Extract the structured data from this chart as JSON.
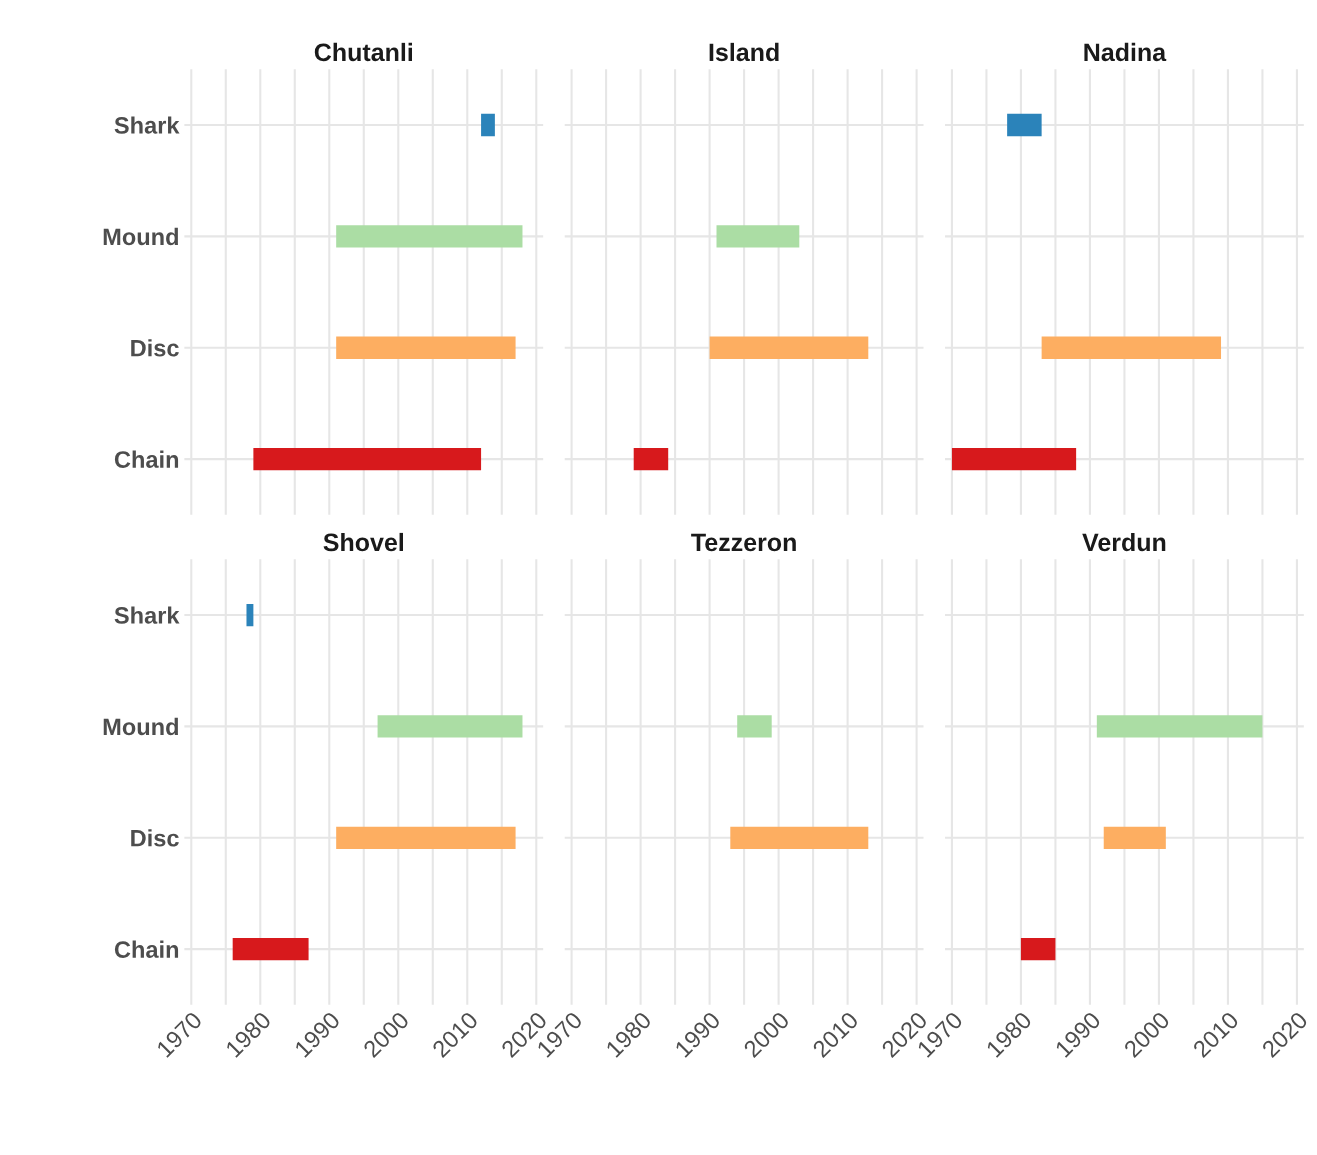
{
  "chart_data": [
    {
      "type": "bar",
      "orientation": "horizontal",
      "title": "Chutanli",
      "categories": [
        "Shark",
        "Mound",
        "Disc",
        "Chain"
      ],
      "base": [
        2012,
        1991,
        1991,
        1979
      ],
      "values": [
        2,
        27,
        26,
        33
      ],
      "colors": [
        "#2b83ba",
        "#abdda4",
        "#fdae61",
        "#d7191c"
      ],
      "xlim": [
        1969,
        2021
      ],
      "xticks": [
        1970,
        {
          "value": 1975,
          "label": null
        },
        1980,
        {
          "value": 1985,
          "label": null
        },
        1990,
        {
          "value": 1995,
          "label": null
        },
        2000,
        {
          "value": 2005,
          "label": null
        },
        2010,
        {
          "value": 2015,
          "label": null
        },
        2020
      ],
      "grid": true,
      "tick_labels": "y"
    },
    {
      "type": "bar",
      "orientation": "horizontal",
      "title": "Island",
      "categories": [
        "Shark",
        "Mound",
        "Disc",
        "Chain"
      ],
      "base": [
        null,
        1991,
        1990,
        1979
      ],
      "values": [
        null,
        12,
        23,
        5
      ],
      "colors": [
        "#2b83ba",
        "#abdda4",
        "#fdae61",
        "#d7191c"
      ],
      "xlim": [
        1969,
        2021
      ],
      "xticks": [
        1970,
        {
          "value": 1975,
          "label": null
        },
        1980,
        {
          "value": 1985,
          "label": null
        },
        1990,
        {
          "value": 1995,
          "label": null
        },
        2000,
        {
          "value": 2005,
          "label": null
        },
        2010,
        {
          "value": 2015,
          "label": null
        },
        2020
      ],
      "grid": true,
      "tick_labels": false
    },
    {
      "type": "bar",
      "orientation": "horizontal",
      "title": "Nadina",
      "categories": [
        "Shark",
        "Mound",
        "Disc",
        "Chain"
      ],
      "base": [
        1978,
        null,
        1983,
        1970
      ],
      "values": [
        5,
        null,
        26,
        18
      ],
      "colors": [
        "#2b83ba",
        "#abdda4",
        "#fdae61",
        "#d7191c"
      ],
      "xlim": [
        1969,
        2021
      ],
      "xticks": [
        1970,
        {
          "value": 1975,
          "label": null
        },
        1980,
        {
          "value": 1985,
          "label": null
        },
        1990,
        {
          "value": 1995,
          "label": null
        },
        2000,
        {
          "value": 2005,
          "label": null
        },
        2010,
        {
          "value": 2015,
          "label": null
        },
        2020
      ],
      "grid": true,
      "tick_labels": false
    },
    {
      "type": "bar",
      "orientation": "horizontal",
      "title": "Shovel",
      "categories": [
        "Shark",
        "Mound",
        "Disc",
        "Chain"
      ],
      "base": [
        1978,
        1997,
        1991,
        1976
      ],
      "values": [
        1,
        21,
        26,
        11
      ],
      "colors": [
        "#2b83ba",
        "#abdda4",
        "#fdae61",
        "#d7191c"
      ],
      "xlim": [
        1969,
        2021
      ],
      "xticks": [
        1970,
        {
          "value": 1975,
          "label": null
        },
        1980,
        {
          "value": 1985,
          "label": null
        },
        1990,
        {
          "value": 1995,
          "label": null
        },
        2000,
        {
          "value": 2005,
          "label": null
        },
        2010,
        {
          "value": 2015,
          "label": null
        },
        2020
      ],
      "grid": true
    },
    {
      "type": "bar",
      "orientation": "horizontal",
      "title": "Tezzeron",
      "categories": [
        "Shark",
        "Mound",
        "Disc",
        "Chain"
      ],
      "base": [
        null,
        1994,
        1993,
        null
      ],
      "values": [
        null,
        5,
        20,
        null
      ],
      "colors": [
        "#2b83ba",
        "#abdda4",
        "#fdae61",
        "#d7191c"
      ],
      "xlim": [
        1969,
        2021
      ],
      "xticks": [
        1970,
        {
          "value": 1975,
          "label": null
        },
        1980,
        {
          "value": 1985,
          "label": null
        },
        1990,
        {
          "value": 1995,
          "label": null
        },
        2000,
        {
          "value": 2005,
          "label": null
        },
        2010,
        {
          "value": 2015,
          "label": null
        },
        2020
      ],
      "grid": true,
      "tick_labels": "x"
    },
    {
      "type": "bar",
      "orientation": "horizontal",
      "title": "Verdun",
      "categories": [
        "Shark",
        "Mound",
        "Disc",
        "Chain"
      ],
      "base": [
        null,
        1991,
        1992,
        1980
      ],
      "values": [
        null,
        24,
        9,
        5
      ],
      "colors": [
        "#2b83ba",
        "#abdda4",
        "#fdae61",
        "#d7191c"
      ],
      "xlim": [
        1969,
        2021
      ],
      "xticks": [
        1970,
        {
          "value": 1975,
          "label": null
        },
        1980,
        {
          "value": 1985,
          "label": null
        },
        1990,
        {
          "value": 1995,
          "label": null
        },
        2000,
        {
          "value": 2005,
          "label": null
        },
        2010,
        {
          "value": 2015,
          "label": null
        },
        2020
      ],
      "grid": true,
      "tick_labels": "x"
    }
  ]
}
